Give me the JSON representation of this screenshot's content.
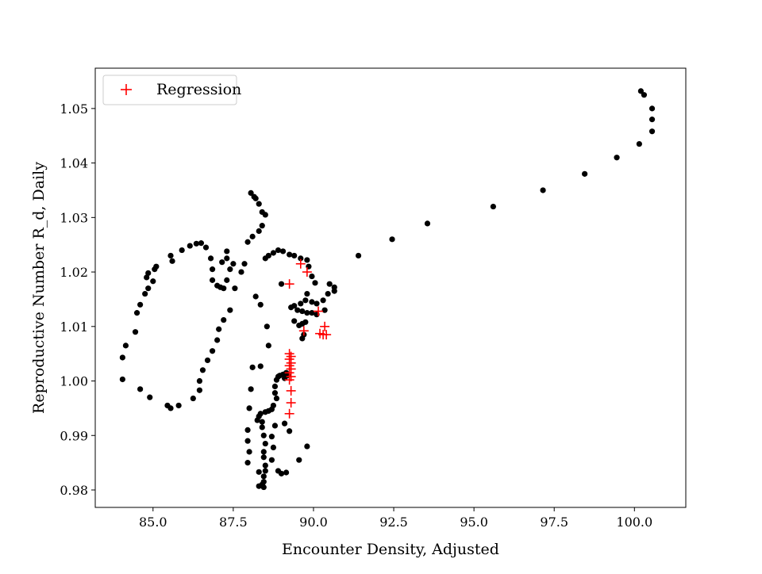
{
  "chart_data": {
    "type": "scatter",
    "title": "",
    "xlabel": "Encounter Density, Adjusted",
    "ylabel": "Reproductive Number R_d, Daily",
    "xlim": [
      83.2,
      101.6
    ],
    "ylim": [
      0.9768,
      1.0574
    ],
    "xticks": [
      85.0,
      87.5,
      90.0,
      92.5,
      95.0,
      97.5,
      100.0
    ],
    "xtick_labels": [
      "85.0",
      "87.5",
      "90.0",
      "92.5",
      "95.0",
      "97.5",
      "100.0"
    ],
    "yticks": [
      0.98,
      0.99,
      1.0,
      1.01,
      1.02,
      1.03,
      1.04,
      1.05
    ],
    "ytick_labels": [
      "0.98",
      "0.99",
      "1.00",
      "1.01",
      "1.02",
      "1.03",
      "1.04",
      "1.05"
    ],
    "grid": false,
    "legend": {
      "position": "upper-left",
      "entries": [
        "Regression"
      ]
    },
    "colors": {
      "observed": "#000000",
      "regression": "#ff0000"
    },
    "series": [
      {
        "marker": "dot",
        "color": "#000000",
        "points": [
          [
            100.2,
            1.0532
          ],
          [
            100.3,
            1.0525
          ],
          [
            100.55,
            1.05
          ],
          [
            100.55,
            1.048
          ],
          [
            100.55,
            1.0458
          ],
          [
            100.15,
            1.0435
          ],
          [
            99.45,
            1.041
          ],
          [
            98.45,
            1.038
          ],
          [
            97.15,
            1.035
          ],
          [
            95.6,
            1.032
          ],
          [
            93.55,
            1.0289
          ],
          [
            92.45,
            1.026
          ],
          [
            91.4,
            1.023
          ],
          [
            90.65,
            1.0172
          ],
          [
            90.65,
            1.0165
          ],
          [
            90.5,
            1.0178
          ],
          [
            90.45,
            1.016
          ],
          [
            90.3,
            1.0148
          ],
          [
            90.1,
            1.0142
          ],
          [
            89.95,
            1.0145
          ],
          [
            89.8,
            1.016
          ],
          [
            89.75,
            1.0148
          ],
          [
            89.6,
            1.0142
          ],
          [
            89.4,
            1.0138
          ],
          [
            89.3,
            1.0135
          ],
          [
            89.5,
            1.013
          ],
          [
            89.65,
            1.0128
          ],
          [
            89.8,
            1.0125
          ],
          [
            89.95,
            1.0125
          ],
          [
            90.1,
            1.0122
          ],
          [
            90.35,
            1.013
          ],
          [
            89.75,
            1.0108
          ],
          [
            89.65,
            1.0105
          ],
          [
            89.55,
            1.0102
          ],
          [
            89.4,
            1.011
          ],
          [
            89.7,
            1.0085
          ],
          [
            89.65,
            1.0078
          ],
          [
            90.05,
            1.018
          ],
          [
            89.95,
            1.0192
          ],
          [
            89.85,
            1.021
          ],
          [
            89.8,
            1.0222
          ],
          [
            89.6,
            1.0225
          ],
          [
            89.4,
            1.023
          ],
          [
            89.25,
            1.0232
          ],
          [
            89.05,
            1.0238
          ],
          [
            88.9,
            1.024
          ],
          [
            88.75,
            1.0235
          ],
          [
            88.6,
            1.023
          ],
          [
            88.5,
            1.0225
          ],
          [
            88.2,
            1.0155
          ],
          [
            88.35,
            1.014
          ],
          [
            89.0,
            1.0178
          ],
          [
            88.55,
            1.01
          ],
          [
            88.6,
            1.0065
          ],
          [
            88.35,
            1.0027
          ],
          [
            88.95,
            1.001
          ],
          [
            89.05,
            1.0012
          ],
          [
            89.15,
            1.0015
          ],
          [
            89.2,
            1.001
          ],
          [
            89.1,
            1.0005
          ],
          [
            88.9,
            1.0008
          ],
          [
            88.85,
            1.0002
          ],
          [
            88.8,
            0.999
          ],
          [
            88.8,
            0.9978
          ],
          [
            88.85,
            0.9968
          ],
          [
            88.75,
            0.9955
          ],
          [
            88.7,
            0.9948
          ],
          [
            88.6,
            0.9945
          ],
          [
            88.5,
            0.9943
          ],
          [
            88.35,
            0.994
          ],
          [
            88.3,
            0.9935
          ],
          [
            88.25,
            0.9928
          ],
          [
            88.4,
            0.9925
          ],
          [
            88.4,
            0.9915
          ],
          [
            88.45,
            0.99
          ],
          [
            88.5,
            0.9885
          ],
          [
            88.45,
            0.987
          ],
          [
            88.45,
            0.986
          ],
          [
            88.5,
            0.9845
          ],
          [
            88.5,
            0.9835
          ],
          [
            88.45,
            0.9825
          ],
          [
            88.45,
            0.9815
          ],
          [
            88.4,
            0.981
          ],
          [
            88.45,
            0.9805
          ],
          [
            88.3,
            0.9807
          ],
          [
            88.3,
            0.9833
          ],
          [
            88.7,
            0.9855
          ],
          [
            88.75,
            0.9878
          ],
          [
            88.7,
            0.9898
          ],
          [
            88.8,
            0.9918
          ],
          [
            89.1,
            0.9922
          ],
          [
            89.25,
            0.9908
          ],
          [
            89.15,
            0.9832
          ],
          [
            89.0,
            0.983
          ],
          [
            88.9,
            0.9835
          ],
          [
            89.55,
            0.9855
          ],
          [
            89.8,
            0.988
          ],
          [
            87.95,
            0.985
          ],
          [
            88.0,
            0.987
          ],
          [
            87.95,
            0.989
          ],
          [
            87.95,
            0.991
          ],
          [
            88.0,
            0.995
          ],
          [
            88.05,
            0.9985
          ],
          [
            88.1,
            1.0025
          ],
          [
            88.05,
            1.0345
          ],
          [
            88.15,
            1.0338
          ],
          [
            88.2,
            1.0335
          ],
          [
            88.3,
            1.0325
          ],
          [
            88.4,
            1.031
          ],
          [
            88.5,
            1.0305
          ],
          [
            88.4,
            1.0285
          ],
          [
            88.3,
            1.0275
          ],
          [
            88.1,
            1.0265
          ],
          [
            87.95,
            1.0255
          ],
          [
            87.85,
            1.0215
          ],
          [
            87.75,
            1.02
          ],
          [
            87.55,
            1.017
          ],
          [
            87.4,
            1.013
          ],
          [
            87.2,
            1.0112
          ],
          [
            87.05,
            1.0095
          ],
          [
            87.0,
            1.0075
          ],
          [
            86.85,
            1.0055
          ],
          [
            86.7,
            1.0038
          ],
          [
            86.55,
            1.002
          ],
          [
            86.45,
            1.0
          ],
          [
            86.45,
            0.9983
          ],
          [
            86.25,
            0.9968
          ],
          [
            85.8,
            0.9955
          ],
          [
            85.55,
            0.995
          ],
          [
            85.45,
            0.9955
          ],
          [
            84.9,
            0.997
          ],
          [
            84.6,
            0.9985
          ],
          [
            84.05,
            1.0003
          ],
          [
            84.05,
            1.0043
          ],
          [
            84.15,
            1.0065
          ],
          [
            84.45,
            1.009
          ],
          [
            84.5,
            1.0125
          ],
          [
            84.6,
            1.014
          ],
          [
            84.75,
            1.016
          ],
          [
            84.85,
            1.017
          ],
          [
            85.0,
            1.0183
          ],
          [
            84.8,
            1.019
          ],
          [
            85.1,
            1.021
          ],
          [
            84.85,
            1.0198
          ],
          [
            85.05,
            1.0205
          ],
          [
            85.55,
            1.023
          ],
          [
            85.6,
            1.022
          ],
          [
            85.9,
            1.024
          ],
          [
            86.15,
            1.0248
          ],
          [
            86.35,
            1.0252
          ],
          [
            86.5,
            1.0253
          ],
          [
            86.65,
            1.0245
          ],
          [
            86.8,
            1.0225
          ],
          [
            86.85,
            1.0205
          ],
          [
            86.85,
            1.0185
          ],
          [
            87.0,
            1.0175
          ],
          [
            87.1,
            1.0172
          ],
          [
            87.2,
            1.017
          ],
          [
            87.3,
            1.0185
          ],
          [
            87.4,
            1.0205
          ],
          [
            87.5,
            1.0215
          ],
          [
            87.3,
            1.0225
          ],
          [
            87.15,
            1.0218
          ],
          [
            87.3,
            1.0238
          ]
        ]
      },
      {
        "name": "Regression",
        "marker": "plus",
        "color": "#ff0000",
        "points": [
          [
            89.6,
            1.0215
          ],
          [
            89.8,
            1.02
          ],
          [
            89.25,
            1.0178
          ],
          [
            90.15,
            1.0128
          ],
          [
            90.35,
            1.01
          ],
          [
            90.2,
            1.0087
          ],
          [
            90.3,
            1.0085
          ],
          [
            90.4,
            1.0085
          ],
          [
            89.7,
            1.0092
          ],
          [
            89.25,
            1.005
          ],
          [
            89.3,
            1.0045
          ],
          [
            89.25,
            1.004
          ],
          [
            89.3,
            1.0033
          ],
          [
            89.25,
            1.0028
          ],
          [
            89.3,
            1.0022
          ],
          [
            89.25,
            1.0015
          ],
          [
            89.3,
            1.0008
          ],
          [
            89.25,
            1.0002
          ],
          [
            89.3,
            0.9982
          ],
          [
            89.3,
            0.996
          ],
          [
            89.25,
            0.994
          ]
        ]
      }
    ]
  }
}
